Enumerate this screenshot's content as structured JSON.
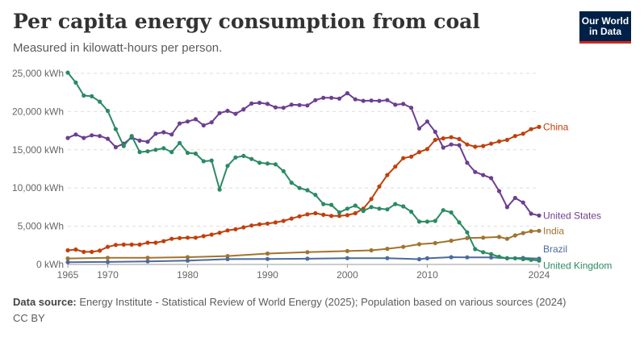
{
  "header": {
    "title": "Per capita energy consumption from coal",
    "subtitle": "Measured in kilowatt-hours per person."
  },
  "logo": {
    "line1": "Our World",
    "line2": "in Data"
  },
  "footer": {
    "source_label": "Data source:",
    "source_text": "Energy Institute - Statistical Review of World Energy (2025); Population based on various sources (2024)",
    "license": "CC BY"
  },
  "chart_data": {
    "type": "line",
    "title": "Per capita energy consumption from coal",
    "xlabel": "",
    "ylabel": "",
    "xlim": [
      1965,
      2024
    ],
    "ylim": [
      0,
      25000
    ],
    "y_ticks": [
      0,
      5000,
      10000,
      15000,
      20000,
      25000
    ],
    "y_tick_labels": [
      "0 kWh",
      "5,000 kWh",
      "10,000 kWh",
      "15,000 kWh",
      "20,000 kWh",
      "25,000 kWh"
    ],
    "x_tick_labels": [
      "1965",
      "1970",
      "1980",
      "1990",
      "2000",
      "2010",
      "2024"
    ],
    "grid": true,
    "series": [
      {
        "name": "United States",
        "color": "#6d3e91",
        "values": [
          [
            1965,
            16550
          ],
          [
            1966,
            17000
          ],
          [
            1967,
            16550
          ],
          [
            1968,
            16900
          ],
          [
            1969,
            16800
          ],
          [
            1970,
            16450
          ],
          [
            1971,
            15350
          ],
          [
            1972,
            15800
          ],
          [
            1973,
            16600
          ],
          [
            1974,
            16200
          ],
          [
            1975,
            16050
          ],
          [
            1976,
            17100
          ],
          [
            1977,
            17300
          ],
          [
            1978,
            17000
          ],
          [
            1979,
            18450
          ],
          [
            1980,
            18700
          ],
          [
            1981,
            19000
          ],
          [
            1982,
            18200
          ],
          [
            1983,
            18600
          ],
          [
            1984,
            19800
          ],
          [
            1985,
            20100
          ],
          [
            1986,
            19700
          ],
          [
            1987,
            20300
          ],
          [
            1988,
            21050
          ],
          [
            1989,
            21150
          ],
          [
            1990,
            21000
          ],
          [
            1991,
            20550
          ],
          [
            1992,
            20500
          ],
          [
            1993,
            20900
          ],
          [
            1994,
            20850
          ],
          [
            1995,
            20800
          ],
          [
            1996,
            21500
          ],
          [
            1997,
            21800
          ],
          [
            1998,
            21800
          ],
          [
            1999,
            21700
          ],
          [
            2000,
            22400
          ],
          [
            2001,
            21600
          ],
          [
            2002,
            21400
          ],
          [
            2003,
            21450
          ],
          [
            2004,
            21400
          ],
          [
            2005,
            21500
          ],
          [
            2006,
            20900
          ],
          [
            2007,
            21000
          ],
          [
            2008,
            20500
          ],
          [
            2009,
            17800
          ],
          [
            2010,
            18700
          ],
          [
            2011,
            17350
          ],
          [
            2012,
            15300
          ],
          [
            2013,
            15700
          ],
          [
            2014,
            15600
          ],
          [
            2015,
            13300
          ],
          [
            2016,
            12100
          ],
          [
            2017,
            11700
          ],
          [
            2018,
            11300
          ],
          [
            2019,
            9600
          ],
          [
            2020,
            7500
          ],
          [
            2021,
            8700
          ],
          [
            2022,
            8100
          ],
          [
            2023,
            6650
          ],
          [
            2024,
            6400
          ]
        ]
      },
      {
        "name": "China",
        "color": "#c0400b",
        "values": [
          [
            1965,
            1850
          ],
          [
            1966,
            1950
          ],
          [
            1967,
            1650
          ],
          [
            1968,
            1650
          ],
          [
            1969,
            1800
          ],
          [
            1970,
            2300
          ],
          [
            1971,
            2550
          ],
          [
            1972,
            2600
          ],
          [
            1973,
            2600
          ],
          [
            1974,
            2600
          ],
          [
            1975,
            2850
          ],
          [
            1976,
            2850
          ],
          [
            1977,
            3050
          ],
          [
            1978,
            3350
          ],
          [
            1979,
            3450
          ],
          [
            1980,
            3500
          ],
          [
            1981,
            3500
          ],
          [
            1982,
            3700
          ],
          [
            1983,
            3900
          ],
          [
            1984,
            4150
          ],
          [
            1985,
            4450
          ],
          [
            1986,
            4600
          ],
          [
            1987,
            4850
          ],
          [
            1988,
            5100
          ],
          [
            1989,
            5250
          ],
          [
            1990,
            5350
          ],
          [
            1991,
            5500
          ],
          [
            1992,
            5700
          ],
          [
            1993,
            6000
          ],
          [
            1994,
            6300
          ],
          [
            1995,
            6550
          ],
          [
            1996,
            6700
          ],
          [
            1997,
            6500
          ],
          [
            1998,
            6350
          ],
          [
            1999,
            6350
          ],
          [
            2000,
            6450
          ],
          [
            2001,
            6700
          ],
          [
            2002,
            7300
          ],
          [
            2003,
            8550
          ],
          [
            2004,
            10200
          ],
          [
            2005,
            11700
          ],
          [
            2006,
            12800
          ],
          [
            2007,
            13900
          ],
          [
            2008,
            14100
          ],
          [
            2009,
            14700
          ],
          [
            2010,
            15100
          ],
          [
            2011,
            16300
          ],
          [
            2012,
            16500
          ],
          [
            2013,
            16650
          ],
          [
            2014,
            16400
          ],
          [
            2015,
            15700
          ],
          [
            2016,
            15400
          ],
          [
            2017,
            15500
          ],
          [
            2018,
            15800
          ],
          [
            2019,
            16100
          ],
          [
            2020,
            16300
          ],
          [
            2021,
            16800
          ],
          [
            2022,
            17100
          ],
          [
            2023,
            17700
          ],
          [
            2024,
            18000
          ]
        ]
      },
      {
        "name": "India",
        "color": "#a2732d",
        "values": [
          [
            1965,
            780
          ],
          [
            1970,
            860
          ],
          [
            1975,
            880
          ],
          [
            1980,
            950
          ],
          [
            1985,
            1100
          ],
          [
            1990,
            1420
          ],
          [
            1995,
            1600
          ],
          [
            2000,
            1750
          ],
          [
            2003,
            1850
          ],
          [
            2005,
            2050
          ],
          [
            2007,
            2300
          ],
          [
            2009,
            2650
          ],
          [
            2011,
            2800
          ],
          [
            2013,
            3100
          ],
          [
            2015,
            3450
          ],
          [
            2017,
            3500
          ],
          [
            2019,
            3600
          ],
          [
            2020,
            3350
          ],
          [
            2021,
            3800
          ],
          [
            2022,
            4100
          ],
          [
            2023,
            4350
          ],
          [
            2024,
            4400
          ]
        ]
      },
      {
        "name": "Brazil",
        "color": "#4c6a9c",
        "values": [
          [
            1965,
            300
          ],
          [
            1970,
            330
          ],
          [
            1975,
            400
          ],
          [
            1980,
            500
          ],
          [
            1985,
            700
          ],
          [
            1990,
            720
          ],
          [
            1995,
            750
          ],
          [
            2000,
            820
          ],
          [
            2005,
            820
          ],
          [
            2009,
            690
          ],
          [
            2010,
            800
          ],
          [
            2013,
            950
          ],
          [
            2015,
            930
          ],
          [
            2018,
            920
          ],
          [
            2020,
            820
          ],
          [
            2022,
            840
          ],
          [
            2024,
            760
          ]
        ]
      },
      {
        "name": "United Kingdom",
        "color": "#2a8a63",
        "values": [
          [
            1965,
            25100
          ],
          [
            1966,
            23800
          ],
          [
            1967,
            22100
          ],
          [
            1968,
            22000
          ],
          [
            1969,
            21300
          ],
          [
            1970,
            20100
          ],
          [
            1971,
            17700
          ],
          [
            1972,
            15500
          ],
          [
            1973,
            16800
          ],
          [
            1974,
            14700
          ],
          [
            1975,
            14800
          ],
          [
            1976,
            15000
          ],
          [
            1977,
            15200
          ],
          [
            1978,
            14700
          ],
          [
            1979,
            15900
          ],
          [
            1980,
            14600
          ],
          [
            1981,
            14500
          ],
          [
            1982,
            13500
          ],
          [
            1983,
            13600
          ],
          [
            1984,
            9800
          ],
          [
            1985,
            12900
          ],
          [
            1986,
            14000
          ],
          [
            1987,
            14200
          ],
          [
            1988,
            13800
          ],
          [
            1989,
            13300
          ],
          [
            1990,
            13200
          ],
          [
            1991,
            13100
          ],
          [
            1992,
            12200
          ],
          [
            1993,
            10700
          ],
          [
            1994,
            10000
          ],
          [
            1995,
            9700
          ],
          [
            1996,
            9100
          ],
          [
            1997,
            7900
          ],
          [
            1998,
            7800
          ],
          [
            1999,
            6800
          ],
          [
            2000,
            7300
          ],
          [
            2001,
            7700
          ],
          [
            2002,
            7000
          ],
          [
            2003,
            7500
          ],
          [
            2004,
            7300
          ],
          [
            2005,
            7200
          ],
          [
            2006,
            7900
          ],
          [
            2007,
            7600
          ],
          [
            2008,
            6900
          ],
          [
            2009,
            5600
          ],
          [
            2010,
            5600
          ],
          [
            2011,
            5700
          ],
          [
            2012,
            7100
          ],
          [
            2013,
            6800
          ],
          [
            2014,
            5500
          ],
          [
            2015,
            4200
          ],
          [
            2016,
            2000
          ],
          [
            2017,
            1600
          ],
          [
            2018,
            1350
          ],
          [
            2019,
            1000
          ],
          [
            2020,
            800
          ],
          [
            2021,
            800
          ],
          [
            2022,
            700
          ],
          [
            2023,
            600
          ],
          [
            2024,
            500
          ]
        ]
      }
    ],
    "legend_placement": "right-end-labels"
  }
}
